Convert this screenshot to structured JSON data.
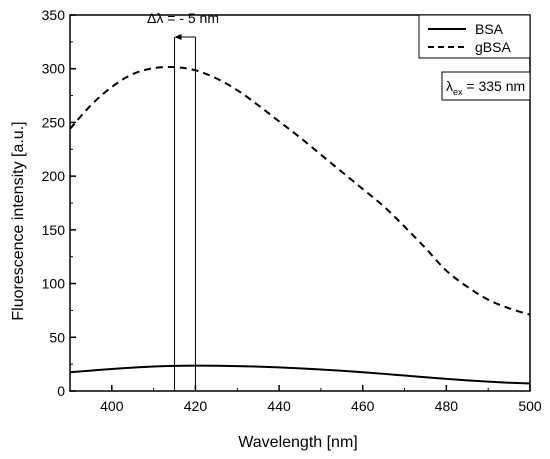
{
  "chart_data": {
    "type": "line",
    "xlabel": "Wavelength [nm]",
    "ylabel": "Fluorescence intensity [a.u.]",
    "xlim": [
      390,
      500
    ],
    "ylim": [
      0,
      350
    ],
    "x_ticks": [
      400,
      420,
      440,
      460,
      480,
      500
    ],
    "y_ticks": [
      0,
      50,
      100,
      150,
      200,
      250,
      300,
      350
    ],
    "grid": false,
    "legend_position": "top-right",
    "series": [
      {
        "name": "BSA",
        "style": "solid",
        "color": "#000000",
        "x": [
          390,
          395,
          400,
          405,
          410,
          415,
          420,
          425,
          430,
          435,
          440,
          445,
          450,
          455,
          460,
          465,
          470,
          475,
          480,
          485,
          490,
          495,
          500
        ],
        "y": [
          17.5,
          19,
          20.5,
          21.8,
          22.8,
          23.4,
          23.6,
          23.5,
          23.2,
          22.7,
          22,
          21.1,
          20,
          18.8,
          17.4,
          16,
          14.4,
          12.8,
          11.3,
          9.9,
          8.7,
          7.7,
          7
        ]
      },
      {
        "name": "gBSA",
        "style": "dashed",
        "color": "#000000",
        "x": [
          390,
          395,
          400,
          405,
          410,
          415,
          420,
          425,
          430,
          435,
          440,
          445,
          450,
          455,
          460,
          465,
          470,
          475,
          480,
          485,
          490,
          495,
          500
        ],
        "y": [
          244,
          266,
          283,
          295,
          300.5,
          301.5,
          298.5,
          291,
          280,
          266,
          251,
          236,
          220,
          204,
          188,
          172,
          153,
          133,
          112,
          97,
          85,
          77,
          71
        ]
      }
    ],
    "annotations": {
      "shift_label": "Δλ = - 5 nm",
      "shift_lines_x": [
        415,
        420
      ],
      "excitation_symbol": "λ",
      "excitation_subscript": "ex",
      "excitation_value": " = 335 nm"
    }
  }
}
